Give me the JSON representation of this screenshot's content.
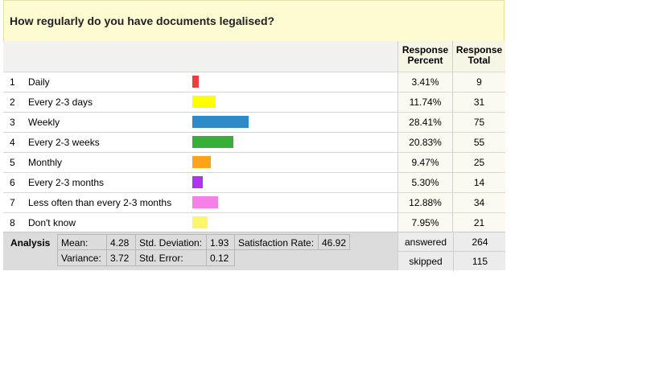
{
  "title": "How regularly do you have documents legalised?",
  "columns": {
    "percent": "Response\nPercent",
    "total": "Response\nTotal"
  },
  "chart_data": {
    "type": "bar",
    "title": "How regularly do you have documents legalised?",
    "categories": [
      "Daily",
      "Every 2-3 days",
      "Weekly",
      "Every 2-3 weeks",
      "Monthly",
      "Every 2-3 months",
      "Less often than every 2-3 months",
      "Don't know"
    ],
    "values": [
      3.41,
      11.74,
      28.41,
      20.83,
      9.47,
      5.3,
      12.88,
      7.95
    ],
    "totals": [
      9,
      31,
      75,
      55,
      25,
      14,
      34,
      21
    ],
    "colors": [
      "#f03c3c",
      "#ffff00",
      "#2e8bc9",
      "#3aae3a",
      "#ffa31a",
      "#b033f0",
      "#f580e8",
      "#fdf56b"
    ]
  },
  "rows": [
    {
      "num": "1",
      "label": "Daily",
      "percent": "3.41%",
      "total": "9"
    },
    {
      "num": "2",
      "label": "Every 2-3 days",
      "percent": "11.74%",
      "total": "31"
    },
    {
      "num": "3",
      "label": "Weekly",
      "percent": "28.41%",
      "total": "75"
    },
    {
      "num": "4",
      "label": "Every 2-3 weeks",
      "percent": "20.83%",
      "total": "55"
    },
    {
      "num": "5",
      "label": "Monthly",
      "percent": "9.47%",
      "total": "25"
    },
    {
      "num": "6",
      "label": "Every 2-3 months",
      "percent": "5.30%",
      "total": "14"
    },
    {
      "num": "7",
      "label": "Less often than every 2-3 months",
      "percent": "12.88%",
      "total": "34"
    },
    {
      "num": "8",
      "label": "Don't know",
      "percent": "7.95%",
      "total": "21"
    }
  ],
  "analysis": {
    "label": "Analysis",
    "mean_label": "Mean:",
    "mean": "4.28",
    "sd_label": "Std. Deviation:",
    "sd": "1.93",
    "sat_label": "Satisfaction Rate:",
    "sat": "46.92",
    "var_label": "Variance:",
    "var": "3.72",
    "se_label": "Std. Error:",
    "se": "0.12"
  },
  "summary": {
    "answered_label": "answered",
    "answered": "264",
    "skipped_label": "skipped",
    "skipped": "115"
  }
}
